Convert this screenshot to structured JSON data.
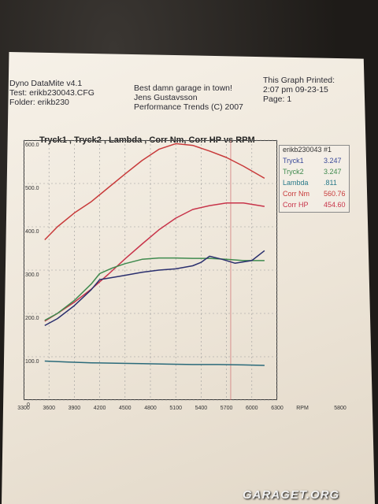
{
  "header": {
    "col1": [
      "Dyno DataMite v4.1",
      "Test: erikb230043.CFG",
      "Folder: erikb230"
    ],
    "col2": [
      "Best damn garage in town!",
      "Jens Gustavsson",
      "Performance Trends (C) 2007"
    ],
    "col3": [
      "This Graph Printed:",
      "2:07 pm 09-23-15",
      "Page: 1"
    ]
  },
  "legend": {
    "header": "erikb230043  #1",
    "entries": [
      {
        "name": "Tryck1",
        "value": "3.247",
        "color": "#3b4a9a"
      },
      {
        "name": "Tryck2",
        "value": "3.247",
        "color": "#3f8a4e"
      },
      {
        "name": "Lambda",
        "value": ".811",
        "color": "#2a7a8a"
      },
      {
        "name": "Corr Nm",
        "value": "560.76",
        "color": "#c83a3a"
      },
      {
        "name": "Corr HP",
        "value": "454.60",
        "color": "#c8344a"
      }
    ]
  },
  "watermark": "GARAGET.ORG",
  "chart_data": {
    "type": "line",
    "title": "Tryck1 , Tryck2 , Lambda , Corr Nm, Corr HP vs RPM",
    "xlabel": "RPM",
    "ylabel": "",
    "xlim": [
      3300,
      6300
    ],
    "ylim": [
      0,
      600
    ],
    "x_ticks": [
      "3300",
      "3600",
      "3900",
      "4200",
      "4500",
      "4800",
      "5100",
      "5400",
      "5700",
      "6000",
      "6300",
      "RPM",
      "5800"
    ],
    "y_ticks": [
      "600.0",
      "500.0",
      "400.0",
      "300.0",
      "200.0",
      "100.0",
      ".0"
    ],
    "grid": true,
    "marker_rpm": 5750,
    "series": [
      {
        "name": "Corr Nm",
        "color": "#c83a3a",
        "x": [
          3550,
          3700,
          3900,
          4100,
          4300,
          4500,
          4700,
          4900,
          5100,
          5300,
          5500,
          5700,
          5900,
          6150
        ],
        "y": [
          370,
          400,
          432,
          458,
          490,
          522,
          553,
          579,
          592,
          588,
          575,
          560,
          540,
          512
        ]
      },
      {
        "name": "Corr HP",
        "color": "#c8344a",
        "x": [
          3550,
          3700,
          3900,
          4100,
          4300,
          4500,
          4700,
          4900,
          5100,
          5300,
          5500,
          5700,
          5900,
          6150
        ],
        "y": [
          182,
          200,
          226,
          256,
          290,
          326,
          360,
          393,
          420,
          440,
          449,
          455,
          455,
          447
        ]
      },
      {
        "name": "Tryck2",
        "color": "#3f8a4e",
        "x": [
          3550,
          3700,
          3900,
          4100,
          4200,
          4350,
          4500,
          4700,
          4900,
          5100,
          5300,
          5500,
          5700,
          5900,
          6150
        ],
        "y": [
          184,
          200,
          230,
          268,
          292,
          305,
          315,
          325,
          328,
          328,
          327,
          327,
          325,
          322,
          322
        ]
      },
      {
        "name": "Tryck1",
        "color": "#2a2f6e",
        "x": [
          3550,
          3700,
          3900,
          4100,
          4200,
          4350,
          4500,
          4700,
          4900,
          5100,
          5300,
          5400,
          5500,
          5650,
          5800,
          6000,
          6150
        ],
        "y": [
          172,
          188,
          218,
          255,
          278,
          283,
          288,
          295,
          300,
          303,
          310,
          318,
          332,
          325,
          316,
          322,
          345
        ]
      },
      {
        "name": "Lambda",
        "color": "#2a6a7a",
        "x": [
          3550,
          3800,
          4100,
          4400,
          4700,
          5000,
          5300,
          5600,
          5900,
          6150
        ],
        "y": [
          90,
          88,
          86,
          85,
          84,
          83,
          82,
          82,
          81,
          80
        ]
      }
    ]
  }
}
